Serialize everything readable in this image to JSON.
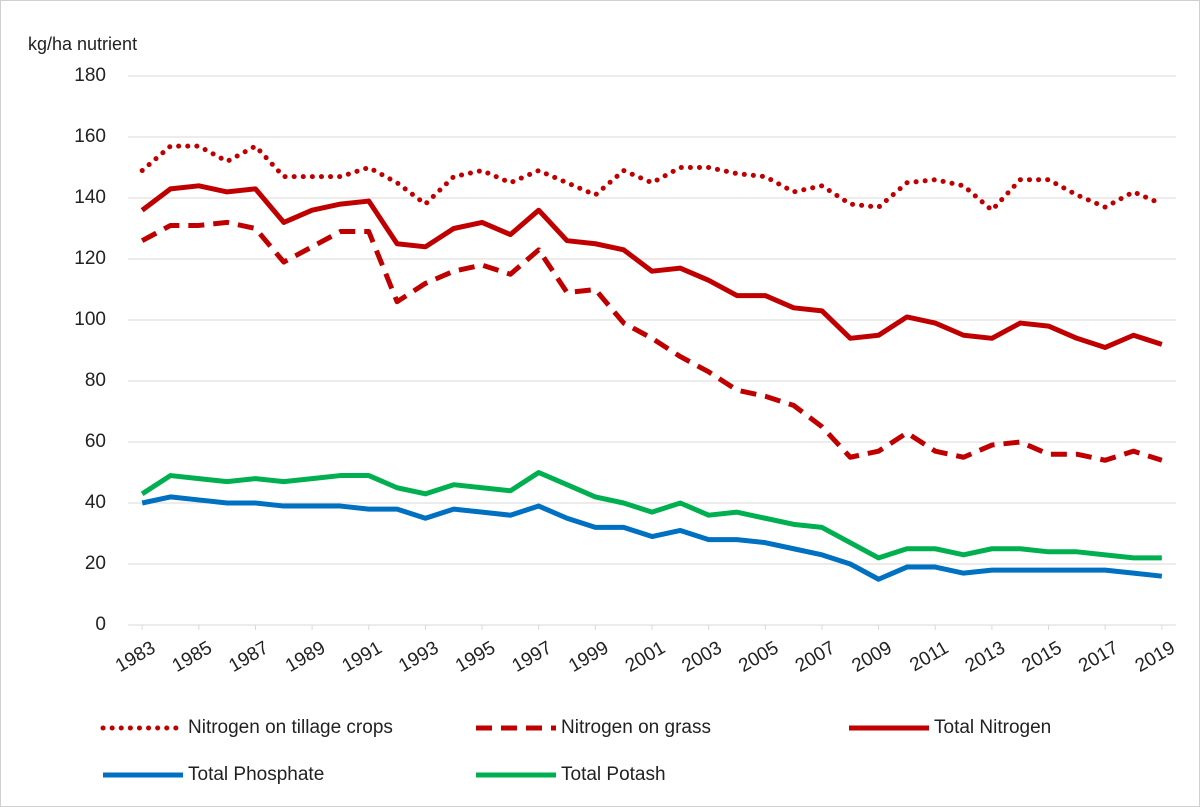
{
  "chart_data": {
    "type": "line",
    "y_axis_label": "kg/ha nutrient",
    "x": [
      1983,
      1984,
      1985,
      1986,
      1987,
      1988,
      1989,
      1990,
      1991,
      1992,
      1993,
      1994,
      1995,
      1996,
      1997,
      1998,
      1999,
      2000,
      2001,
      2002,
      2003,
      2004,
      2005,
      2006,
      2007,
      2008,
      2009,
      2010,
      2011,
      2012,
      2013,
      2014,
      2015,
      2016,
      2017,
      2018,
      2019
    ],
    "xlim": [
      1982.5,
      2019.5
    ],
    "xticks": [
      1983,
      1985,
      1987,
      1989,
      1991,
      1993,
      1995,
      1997,
      1999,
      2001,
      2003,
      2005,
      2007,
      2009,
      2011,
      2013,
      2015,
      2017,
      2019
    ],
    "ylim": [
      0,
      180
    ],
    "yticks": [
      0,
      20,
      40,
      60,
      80,
      100,
      120,
      140,
      160,
      180
    ],
    "grid": true,
    "legend": "bottom",
    "series": [
      {
        "name": "Nitrogen on tillage crops",
        "color": "#c00000",
        "style": "dotted",
        "values": [
          149,
          157,
          157,
          152,
          157,
          147,
          147,
          147,
          150,
          145,
          138,
          147,
          149,
          145,
          149,
          145,
          141,
          149,
          145,
          150,
          150,
          148,
          147,
          142,
          144,
          138,
          137,
          145,
          146,
          144,
          136,
          146,
          146,
          141,
          137,
          142,
          138
        ]
      },
      {
        "name": "Nitrogen on grass",
        "color": "#c00000",
        "style": "dashed",
        "values": [
          126,
          131,
          131,
          132,
          130,
          119,
          124,
          129,
          129,
          106,
          112,
          116,
          118,
          115,
          123,
          109,
          110,
          99,
          94,
          88,
          83,
          77,
          75,
          72,
          65,
          55,
          57,
          63,
          57,
          55,
          59,
          60,
          56,
          56,
          54,
          57,
          54
        ]
      },
      {
        "name": "Total Nitrogen",
        "color": "#c00000",
        "style": "solid",
        "values": [
          136,
          143,
          144,
          142,
          143,
          132,
          136,
          138,
          139,
          125,
          124,
          130,
          132,
          128,
          136,
          126,
          125,
          123,
          116,
          117,
          113,
          108,
          108,
          104,
          103,
          94,
          95,
          101,
          99,
          95,
          94,
          99,
          98,
          94,
          91,
          95,
          92
        ]
      },
      {
        "name": "Total Phosphate",
        "color": "#0070c0",
        "style": "solid",
        "values": [
          40,
          42,
          41,
          40,
          40,
          39,
          39,
          39,
          38,
          38,
          35,
          38,
          37,
          36,
          39,
          35,
          32,
          32,
          29,
          31,
          28,
          28,
          27,
          25,
          23,
          20,
          15,
          19,
          19,
          17,
          18,
          18,
          18,
          18,
          18,
          17,
          16
        ]
      },
      {
        "name": "Total Potash",
        "color": "#00b050",
        "style": "solid",
        "values": [
          43,
          49,
          48,
          47,
          48,
          47,
          48,
          49,
          49,
          45,
          43,
          46,
          45,
          44,
          50,
          46,
          42,
          40,
          37,
          40,
          36,
          37,
          35,
          33,
          32,
          27,
          22,
          25,
          25,
          23,
          25,
          25,
          24,
          24,
          23,
          22,
          22
        ]
      }
    ]
  }
}
